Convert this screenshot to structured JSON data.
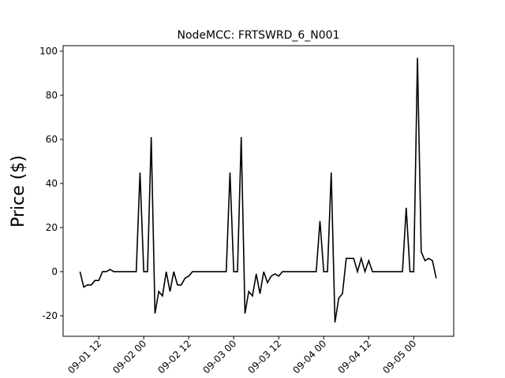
{
  "chart_data": {
    "type": "line",
    "title": "NodeMCC: FRTSWRD_6_N001",
    "y_label": "Price ($)",
    "color": "#000000",
    "x": [
      "09-01 07",
      "09-01 08",
      "09-01 09",
      "09-01 10",
      "09-01 11",
      "09-01 12",
      "09-01 13",
      "09-01 14",
      "09-01 15",
      "09-01 16",
      "09-01 17",
      "09-01 18",
      "09-01 19",
      "09-01 20",
      "09-01 21",
      "09-01 22",
      "09-01 23",
      "09-02 00",
      "09-02 01",
      "09-02 02",
      "09-02 03",
      "09-02 04",
      "09-02 05",
      "09-02 06",
      "09-02 07",
      "09-02 08",
      "09-02 09",
      "09-02 10",
      "09-02 11",
      "09-02 12",
      "09-02 13",
      "09-02 14",
      "09-02 15",
      "09-02 16",
      "09-02 17",
      "09-02 18",
      "09-02 19",
      "09-02 20",
      "09-02 21",
      "09-02 22",
      "09-02 23",
      "09-03 00",
      "09-03 01",
      "09-03 02",
      "09-03 03",
      "09-03 04",
      "09-03 05",
      "09-03 06",
      "09-03 07",
      "09-03 08",
      "09-03 09",
      "09-03 10",
      "09-03 11",
      "09-03 12",
      "09-03 13",
      "09-03 14",
      "09-03 15",
      "09-03 16",
      "09-03 17",
      "09-03 18",
      "09-03 19",
      "09-03 20",
      "09-03 21",
      "09-03 22",
      "09-03 23",
      "09-04 00",
      "09-04 01",
      "09-04 02",
      "09-04 03",
      "09-04 04",
      "09-04 05",
      "09-04 06",
      "09-04 07",
      "09-04 08",
      "09-04 09",
      "09-04 10",
      "09-04 11",
      "09-04 12",
      "09-04 13",
      "09-04 14",
      "09-04 15",
      "09-04 16",
      "09-04 17",
      "09-04 18",
      "09-04 19",
      "09-04 20",
      "09-04 21",
      "09-04 22",
      "09-04 23",
      "09-05 00",
      "09-05 01",
      "09-05 02",
      "09-05 03",
      "09-05 04",
      "09-05 05",
      "09-05 06"
    ],
    "values": [
      0,
      -7,
      -6,
      -6,
      -4,
      -4,
      0,
      0,
      1,
      0,
      0,
      0,
      0,
      0,
      0,
      0,
      45,
      0,
      0,
      61,
      -19,
      -9,
      -11,
      0,
      -9,
      0,
      -6,
      -6,
      -3,
      -2,
      0,
      0,
      0,
      0,
      0,
      0,
      0,
      0,
      0,
      0,
      45,
      0,
      0,
      61,
      -19,
      -9,
      -11,
      -1,
      -10,
      0,
      -5,
      -2,
      -1,
      -2,
      0,
      0,
      0,
      0,
      0,
      0,
      0,
      0,
      0,
      0,
      23,
      0,
      0,
      45,
      -23,
      -12,
      -10,
      6,
      6,
      6,
      0,
      6,
      0,
      5,
      0,
      0,
      0,
      0,
      0,
      0,
      0,
      0,
      0,
      29,
      0,
      0,
      97,
      9,
      5,
      6,
      5,
      -3
    ],
    "xlim": [
      "09-01 02:30",
      "09-05 10:40"
    ],
    "xticks": [
      "09-01 12",
      "09-02 00",
      "09-02 12",
      "09-03 00",
      "09-03 12",
      "09-04 00",
      "09-04 12",
      "09-05 00"
    ],
    "ylim": [
      -29.3,
      102.5
    ],
    "yticks": [
      -20,
      0,
      20,
      40,
      60,
      80,
      100
    ]
  }
}
